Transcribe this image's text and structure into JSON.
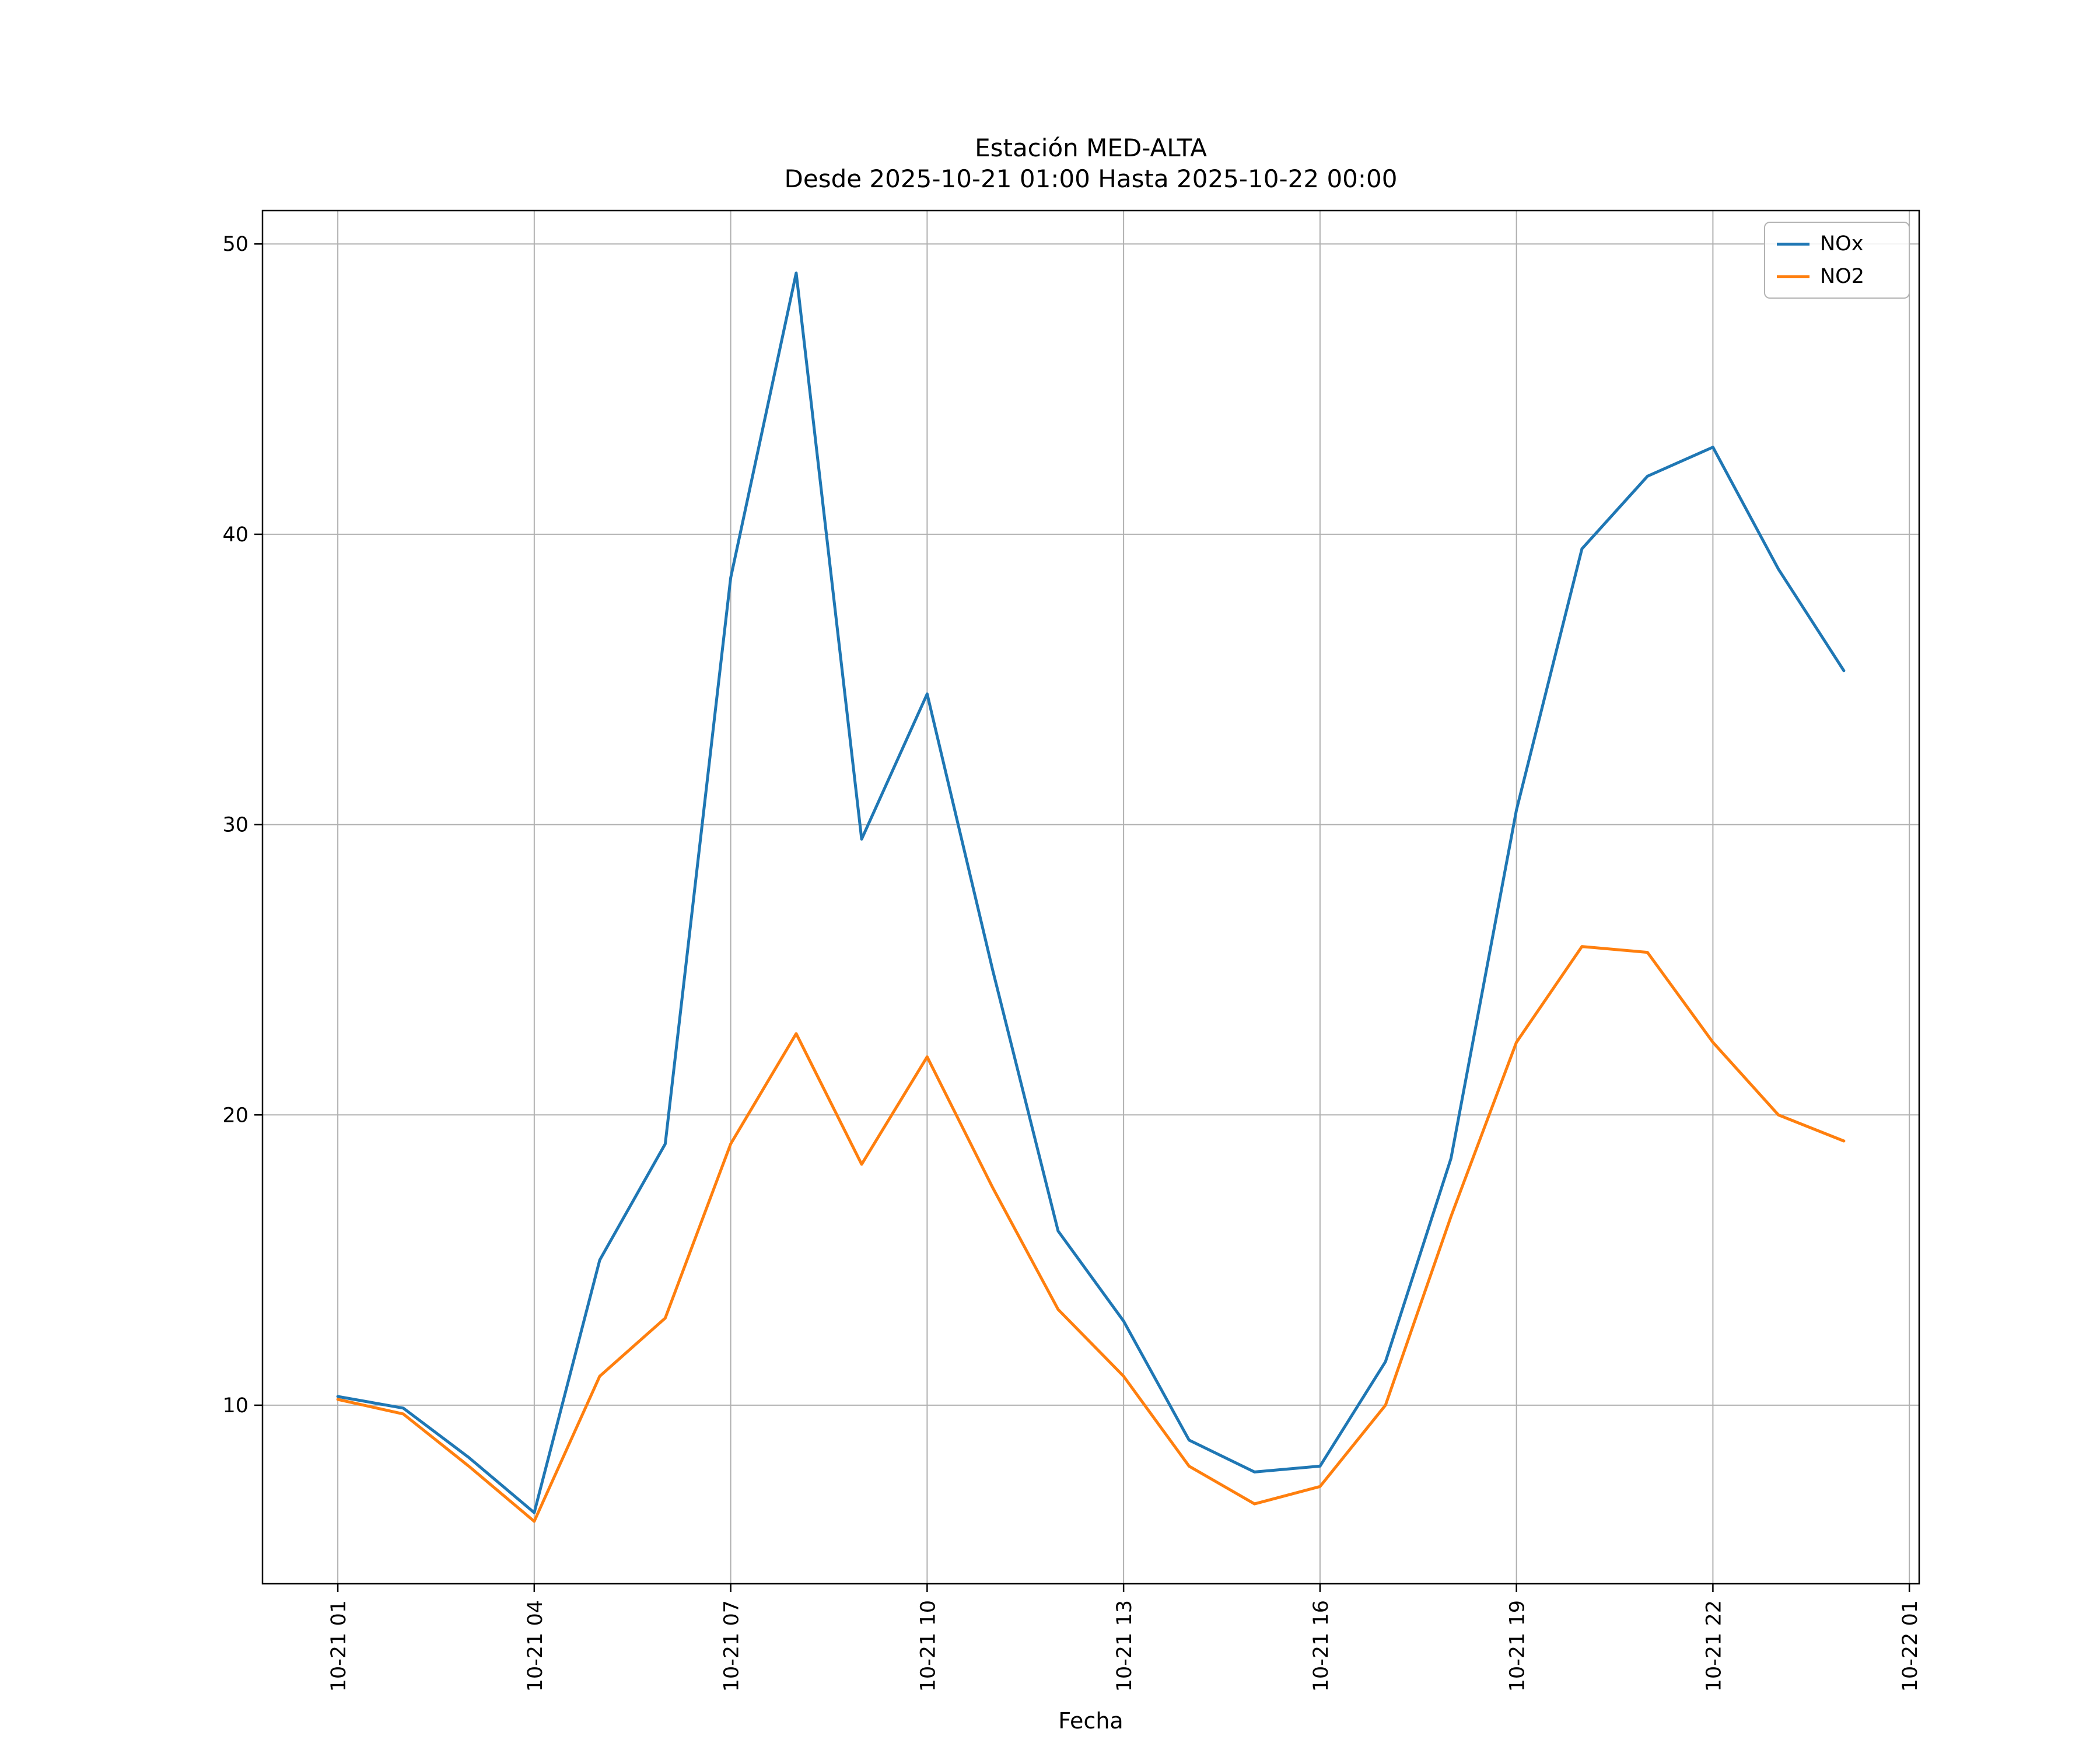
{
  "figure": {
    "title_line1": "Estación MED-ALTA",
    "title_line2": "Desde 2025-10-21 01:00 Hasta 2025-10-22 00:00",
    "xlabel": "Fecha"
  },
  "chart_data": {
    "type": "line",
    "title": "Estación MED-ALTA\nDesde 2025-10-21 01:00 Hasta 2025-10-22 00:00",
    "xlabel": "Fecha",
    "ylabel": "",
    "station": "MED-ALTA",
    "time_range": {
      "from": "2025-10-21 01:00",
      "to": "2025-10-22 00:00"
    },
    "x": [
      0,
      1,
      2,
      3,
      4,
      5,
      6,
      7,
      8,
      9,
      10,
      11,
      12,
      13,
      14,
      15,
      16,
      17,
      18,
      19,
      20,
      21,
      22,
      23
    ],
    "x_times": [
      "10-21 01:00",
      "10-21 02:00",
      "10-21 03:00",
      "10-21 04:00",
      "10-21 05:00",
      "10-21 06:00",
      "10-21 07:00",
      "10-21 08:00",
      "10-21 09:00",
      "10-21 10:00",
      "10-21 11:00",
      "10-21 12:00",
      "10-21 13:00",
      "10-21 14:00",
      "10-21 15:00",
      "10-21 16:00",
      "10-21 17:00",
      "10-21 18:00",
      "10-21 19:00",
      "10-21 20:00",
      "10-21 21:00",
      "10-21 22:00",
      "10-21 23:00",
      "10-22 00:00"
    ],
    "series": [
      {
        "name": "NOx",
        "color": "#1f77b4",
        "values": [
          10.3,
          9.9,
          8.2,
          6.3,
          15.0,
          19.0,
          38.5,
          49.0,
          29.5,
          34.5,
          25.0,
          16.0,
          12.9,
          8.8,
          7.7,
          7.9,
          11.5,
          18.5,
          30.5,
          39.5,
          42.0,
          43.0,
          38.8,
          35.3
        ]
      },
      {
        "name": "NO2",
        "color": "#ff7f0e",
        "values": [
          10.2,
          9.7,
          7.9,
          6.0,
          11.0,
          13.0,
          19.0,
          22.8,
          18.3,
          22.0,
          17.5,
          13.3,
          11.0,
          7.9,
          6.6,
          7.2,
          10.0,
          16.5,
          22.5,
          25.8,
          25.6,
          22.5,
          20.0,
          19.1
        ]
      }
    ],
    "xticks": [
      {
        "pos": 0,
        "label": "10-21 01"
      },
      {
        "pos": 3,
        "label": "10-21 04"
      },
      {
        "pos": 6,
        "label": "10-21 07"
      },
      {
        "pos": 9,
        "label": "10-21 10"
      },
      {
        "pos": 12,
        "label": "10-21 13"
      },
      {
        "pos": 15,
        "label": "10-21 16"
      },
      {
        "pos": 18,
        "label": "10-21 19"
      },
      {
        "pos": 21,
        "label": "10-21 22"
      },
      {
        "pos": 24,
        "label": "10-22 01"
      }
    ],
    "yticks": [
      10,
      20,
      30,
      40,
      50
    ],
    "xlim": [
      -1.15,
      24.15
    ],
    "ylim": [
      3.85,
      51.15
    ],
    "grid": true,
    "grid_color": "#b0b0b0",
    "spine_color": "#000000",
    "legend_position": "upper right",
    "legend_entries": [
      "NOx",
      "NO2"
    ]
  }
}
